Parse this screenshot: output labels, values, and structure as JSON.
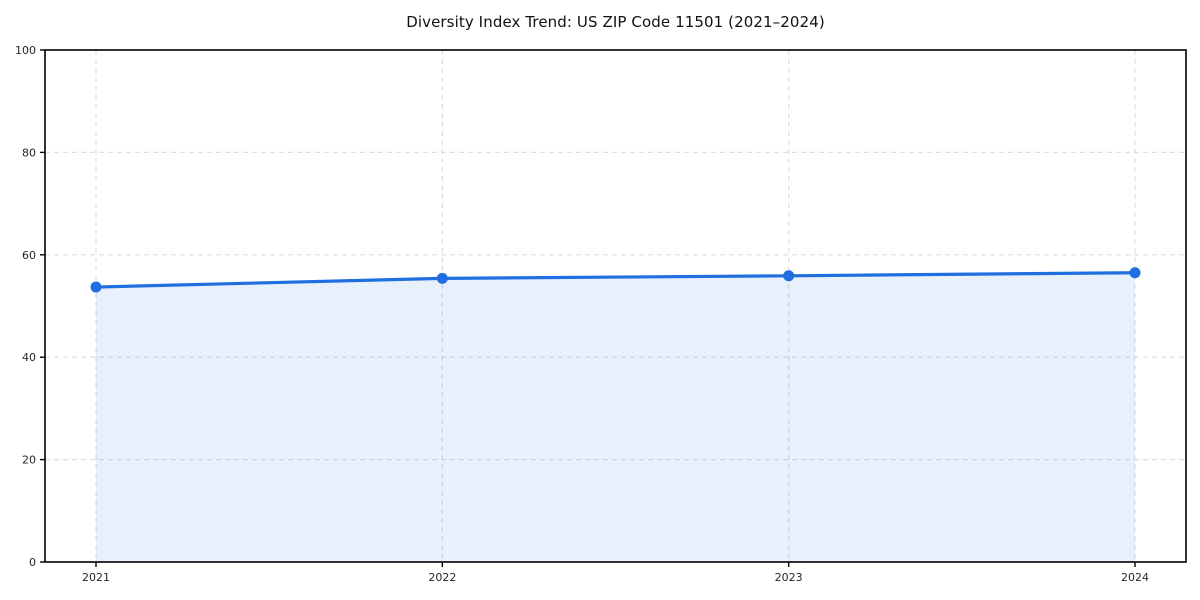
{
  "chart_data": {
    "type": "area",
    "title": "Diversity Index Trend: US ZIP Code 11501 (2021–2024)",
    "x": [
      2021,
      2022,
      2023,
      2024
    ],
    "xticks": [
      "2021",
      "2022",
      "2023",
      "2024"
    ],
    "series": [
      {
        "name": "Diversity Index",
        "values": [
          53.7,
          55.4,
          55.9,
          56.5
        ]
      }
    ],
    "xlabel": "",
    "ylabel": "",
    "ylim": [
      0,
      100
    ],
    "yticks": [
      0,
      20,
      40,
      60,
      80,
      100
    ],
    "grid": "dashed both-axes",
    "legend": "none",
    "colors": {
      "line": "#1f6fe0",
      "marker": "#1f6fe0",
      "fill": "#1f6fe0",
      "fill_opacity": 0.1,
      "grid": "#dedede",
      "spine": "#000000",
      "tick_label": "#262626",
      "background": "#ffffff"
    }
  }
}
